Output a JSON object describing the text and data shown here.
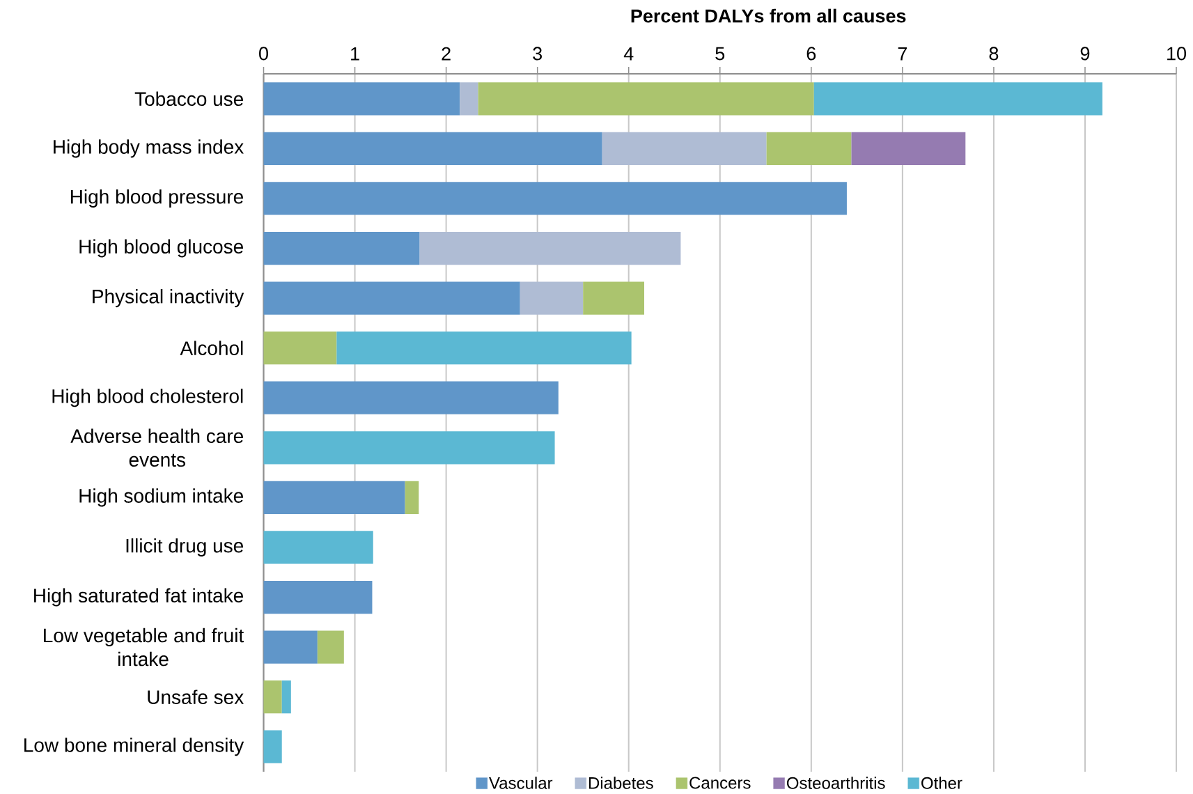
{
  "chart_data": {
    "type": "bar",
    "orientation": "horizontal",
    "stacked": true,
    "xlabel": "Percent DALYs from all causes",
    "categories": [
      "Tobacco use",
      "High body mass index",
      "High blood pressure",
      "High blood glucose",
      "Physical inactivity",
      "Alcohol",
      "High blood cholesterol",
      "Adverse health care events",
      "High sodium intake",
      "Illicit drug use",
      "High saturated fat intake",
      "Low vegetable and fruit intake",
      "Unsafe sex",
      "Low bone mineral density"
    ],
    "series": [
      {
        "name": "Vascular",
        "color": "#6096c9",
        "values": [
          2.15,
          3.71,
          6.39,
          1.71,
          2.81,
          null,
          3.23,
          null,
          1.55,
          null,
          1.19,
          0.59,
          null,
          null
        ]
      },
      {
        "name": "Diabetes",
        "color": "#afbcd4",
        "values": [
          0.2,
          1.8,
          null,
          2.86,
          0.69,
          null,
          null,
          null,
          null,
          null,
          null,
          null,
          null,
          null
        ]
      },
      {
        "name": "Cancers",
        "color": "#abc46e",
        "values": [
          3.68,
          0.93,
          null,
          null,
          0.67,
          0.8,
          null,
          null,
          0.15,
          null,
          null,
          0.29,
          0.2,
          null
        ]
      },
      {
        "name": "Osteoarthritis",
        "color": "#957bb1",
        "values": [
          null,
          1.25,
          null,
          null,
          null,
          null,
          null,
          null,
          null,
          null,
          null,
          null,
          null,
          null
        ]
      },
      {
        "name": "Other",
        "color": "#5bb8d3",
        "values": [
          3.16,
          null,
          null,
          null,
          null,
          3.23,
          null,
          3.19,
          null,
          1.2,
          null,
          null,
          0.1,
          0.2
        ]
      }
    ],
    "xlim": [
      0,
      10
    ],
    "xticks": [
      0,
      1,
      2,
      3,
      4,
      5,
      6,
      7,
      8,
      9,
      10
    ],
    "grid": "x",
    "legend": "bottom"
  }
}
